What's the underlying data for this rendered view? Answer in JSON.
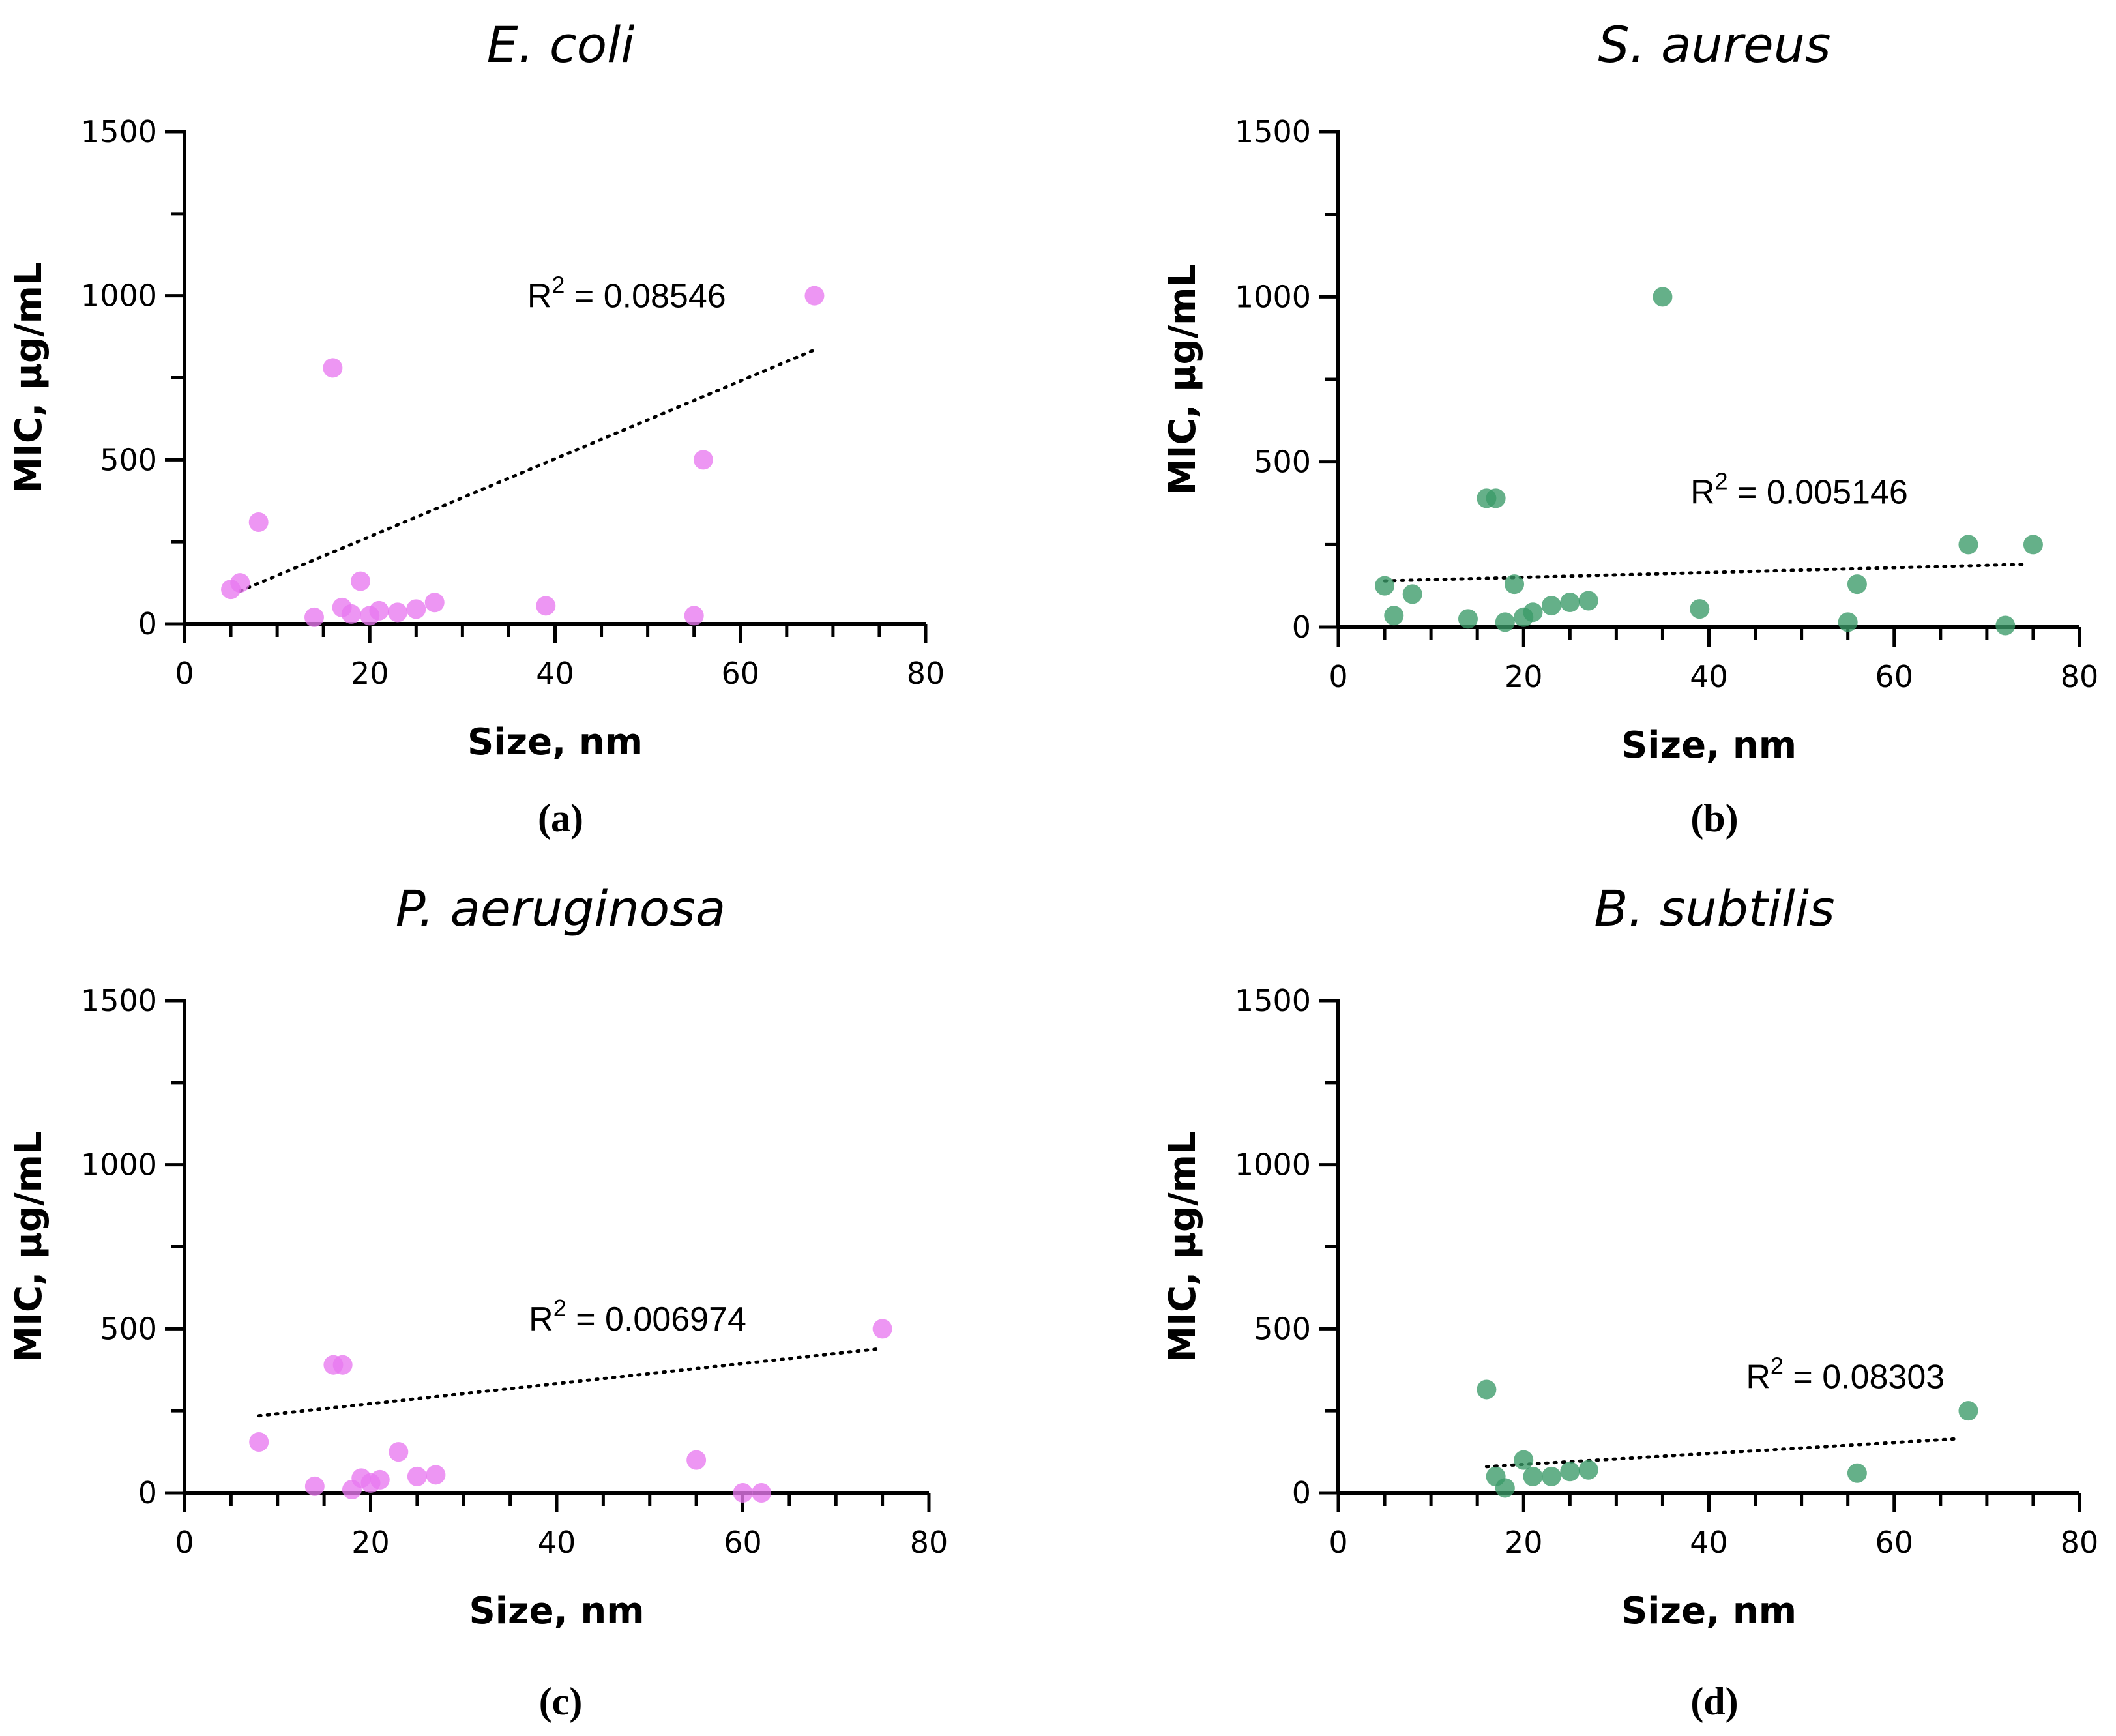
{
  "chart_data": [
    {
      "type": "scatter",
      "title": "E. coli",
      "panel_label": "(a)",
      "xlabel": "Size, nm",
      "ylabel": "MIC, µg/mL",
      "xlim": [
        0,
        80
      ],
      "ylim": [
        0,
        1500
      ],
      "xticks": [
        "0",
        "20",
        "40",
        "60",
        "80"
      ],
      "yticks": [
        "0",
        "500",
        "1000",
        "1500"
      ],
      "color": "#e879f0",
      "r2_label": "R2 = 0.08546",
      "r2_base": "R",
      "r2_sup": "2",
      "r2_value": " = 0.08546",
      "r2_anchor": [
        37,
        1000
      ],
      "trendline": {
        "x": [
          6,
          68
        ],
        "y": [
          100,
          835
        ]
      },
      "points": [
        {
          "x": 5,
          "y": 105
        },
        {
          "x": 6,
          "y": 125
        },
        {
          "x": 8,
          "y": 310
        },
        {
          "x": 14,
          "y": 20
        },
        {
          "x": 16,
          "y": 780
        },
        {
          "x": 17,
          "y": 50
        },
        {
          "x": 18,
          "y": 30
        },
        {
          "x": 19,
          "y": 130
        },
        {
          "x": 20,
          "y": 25
        },
        {
          "x": 21,
          "y": 40
        },
        {
          "x": 23,
          "y": 35
        },
        {
          "x": 25,
          "y": 45
        },
        {
          "x": 27,
          "y": 65
        },
        {
          "x": 39,
          "y": 55
        },
        {
          "x": 55,
          "y": 25
        },
        {
          "x": 56,
          "y": 500
        },
        {
          "x": 68,
          "y": 1000
        }
      ]
    },
    {
      "type": "scatter",
      "title": "S. aureus",
      "panel_label": "(b)",
      "xlabel": "Size, nm",
      "ylabel": "MIC, µg/mL",
      "xlim": [
        0,
        80
      ],
      "ylim": [
        0,
        1500
      ],
      "xticks": [
        "0",
        "20",
        "40",
        "60",
        "80"
      ],
      "yticks": [
        "0",
        "500",
        "1000",
        "1500"
      ],
      "color": "#3a9a68",
      "r2_label": "R2 = 0.005146",
      "r2_base": "R",
      "r2_sup": "2",
      "r2_value": " = 0.005146",
      "r2_anchor": [
        38,
        410
      ],
      "trendline": {
        "x": [
          5,
          74
        ],
        "y": [
          140,
          190
        ]
      },
      "points": [
        {
          "x": 5,
          "y": 125
        },
        {
          "x": 6,
          "y": 35
        },
        {
          "x": 8,
          "y": 100
        },
        {
          "x": 14,
          "y": 25
        },
        {
          "x": 16,
          "y": 390
        },
        {
          "x": 17,
          "y": 390
        },
        {
          "x": 18,
          "y": 15
        },
        {
          "x": 19,
          "y": 130
        },
        {
          "x": 20,
          "y": 30
        },
        {
          "x": 21,
          "y": 45
        },
        {
          "x": 23,
          "y": 65
        },
        {
          "x": 25,
          "y": 75
        },
        {
          "x": 27,
          "y": 80
        },
        {
          "x": 35,
          "y": 1000
        },
        {
          "x": 39,
          "y": 55
        },
        {
          "x": 55,
          "y": 15
        },
        {
          "x": 56,
          "y": 130
        },
        {
          "x": 68,
          "y": 250
        },
        {
          "x": 72,
          "y": 5
        },
        {
          "x": 75,
          "y": 250
        }
      ]
    },
    {
      "type": "scatter",
      "title": "P. aeruginosa",
      "panel_label": "(c)",
      "xlabel": "Size, nm",
      "ylabel": "MIC, µg/mL",
      "xlim": [
        0,
        80
      ],
      "ylim": [
        0,
        1500
      ],
      "xticks": [
        "0",
        "20",
        "40",
        "60",
        "80"
      ],
      "yticks": [
        "0",
        "500",
        "1000",
        "1500"
      ],
      "color": "#e879f0",
      "r2_label": "R2 = 0.006974",
      "r2_base": "R",
      "r2_sup": "2",
      "r2_value": " = 0.006974",
      "r2_anchor": [
        37,
        530
      ],
      "trendline": {
        "x": [
          8,
          75
        ],
        "y": [
          235,
          440
        ]
      },
      "points": [
        {
          "x": 8,
          "y": 155
        },
        {
          "x": 14,
          "y": 20
        },
        {
          "x": 16,
          "y": 390
        },
        {
          "x": 17,
          "y": 390
        },
        {
          "x": 18,
          "y": 10
        },
        {
          "x": 19,
          "y": 45
        },
        {
          "x": 20,
          "y": 30
        },
        {
          "x": 21,
          "y": 40
        },
        {
          "x": 23,
          "y": 125
        },
        {
          "x": 25,
          "y": 50
        },
        {
          "x": 27,
          "y": 55
        },
        {
          "x": 55,
          "y": 100
        },
        {
          "x": 60,
          "y": 0
        },
        {
          "x": 62,
          "y": 0
        },
        {
          "x": 75,
          "y": 500
        }
      ]
    },
    {
      "type": "scatter",
      "title": "B. subtilis",
      "panel_label": "(d)",
      "xlabel": "Size, nm",
      "ylabel": "MIC, µg/mL",
      "xlim": [
        0,
        80
      ],
      "ylim": [
        0,
        1500
      ],
      "xticks": [
        "0",
        "20",
        "40",
        "60",
        "80"
      ],
      "yticks": [
        "0",
        "500",
        "1000",
        "1500"
      ],
      "color": "#3a9a68",
      "r2_label": "R2 = 0.08303",
      "r2_base": "R",
      "r2_sup": "2",
      "r2_value": " = 0.08303",
      "r2_anchor": [
        44,
        355
      ],
      "trendline": {
        "x": [
          16,
          67
        ],
        "y": [
          80,
          165
        ]
      },
      "points": [
        {
          "x": 16,
          "y": 315
        },
        {
          "x": 17,
          "y": 50
        },
        {
          "x": 18,
          "y": 15
        },
        {
          "x": 20,
          "y": 100
        },
        {
          "x": 21,
          "y": 50
        },
        {
          "x": 23,
          "y": 50
        },
        {
          "x": 25,
          "y": 65
        },
        {
          "x": 27,
          "y": 70
        },
        {
          "x": 56,
          "y": 60
        },
        {
          "x": 68,
          "y": 250
        }
      ]
    }
  ]
}
